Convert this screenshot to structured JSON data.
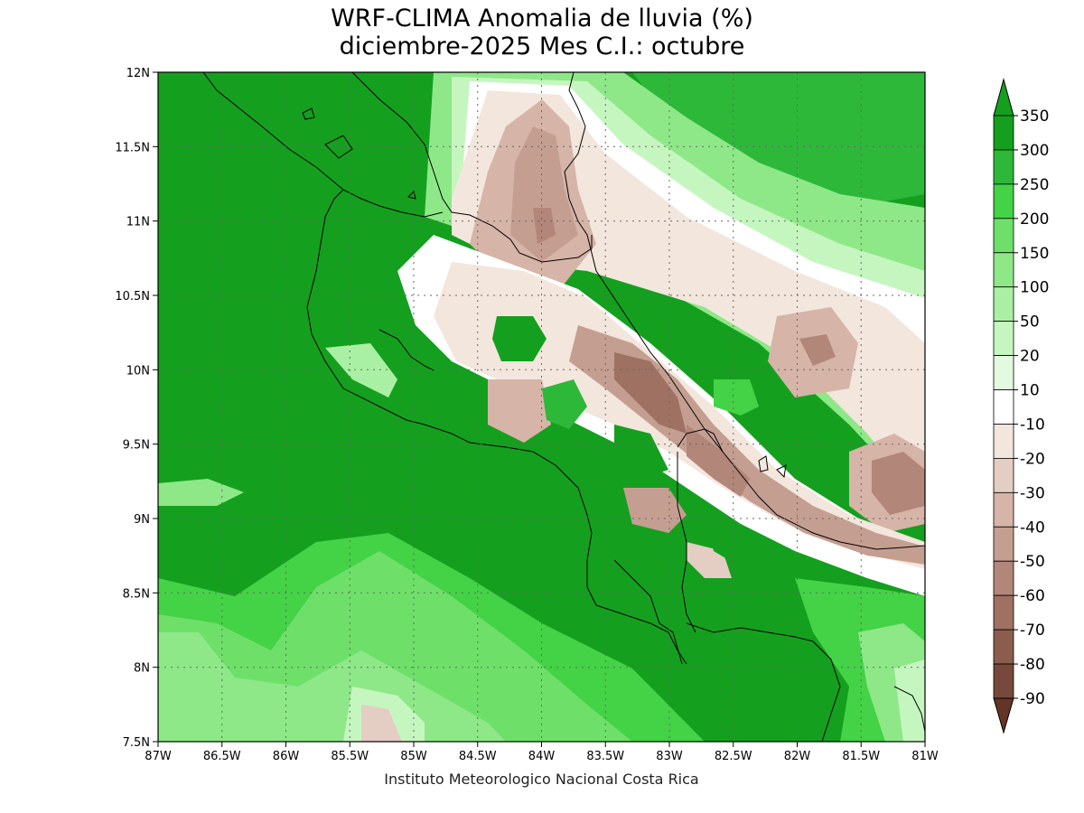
{
  "title_line1": "WRF-CLIMA Anomalia de lluvia (%)",
  "title_line2": "diciembre-2025 Mes C.I.: octubre",
  "footer": "Instituto Meteorologico Nacional Costa Rica",
  "axes": {
    "lon_labels": [
      "87W",
      "86.5W",
      "86W",
      "85.5W",
      "85W",
      "84.5W",
      "84W",
      "83.5W",
      "83W",
      "82.5W",
      "82W",
      "81.5W",
      "81W"
    ],
    "lat_labels": [
      "12N",
      "11.5N",
      "11N",
      "10.5N",
      "10N",
      "9.5N",
      "9N",
      "8.5N",
      "8N",
      "7.5N"
    ],
    "lon_range": [
      -87,
      -81
    ],
    "lat_range": [
      7.5,
      12
    ],
    "grid": "dotted"
  },
  "colorbar": {
    "labels": [
      "350",
      "300",
      "250",
      "200",
      "150",
      "100",
      "50",
      "20",
      "10",
      "-10",
      "-20",
      "-30",
      "-40",
      "-50",
      "-60",
      "-70",
      "-80",
      "-90"
    ],
    "colors": [
      "#14a01e",
      "#2db83a",
      "#44d246",
      "#6ee06a",
      "#8ee888",
      "#aaf0a4",
      "#c6f6c0",
      "#e4fae0",
      "#ffffff",
      "#f3e6dd",
      "#e4cdc2",
      "#d6b4a8",
      "#c59e92",
      "#b28679",
      "#9f7163",
      "#8b5d4f",
      "#77493c",
      "#633527"
    ]
  },
  "map": {
    "background_color": "#14a01e",
    "coastline_color": "#000000"
  }
}
